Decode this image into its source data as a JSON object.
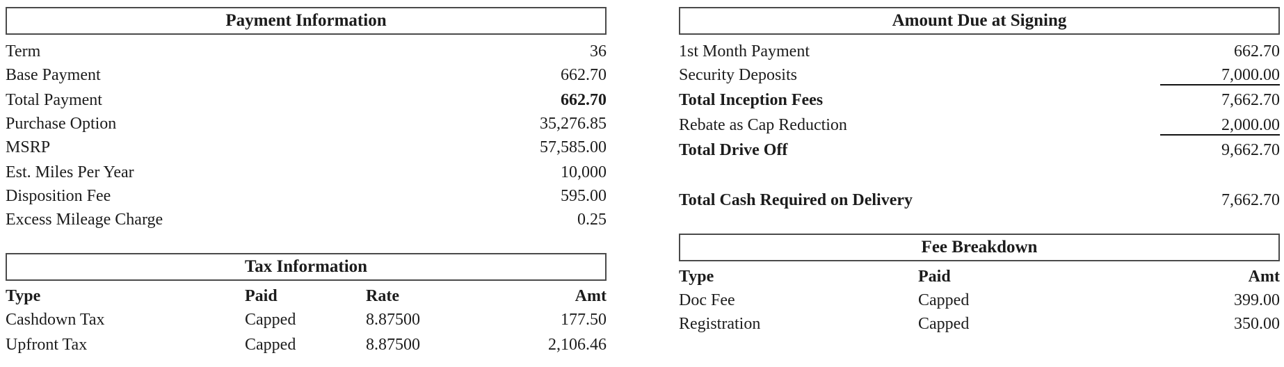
{
  "payment": {
    "title": "Payment Information",
    "rows": [
      {
        "label": "Term",
        "value": "36"
      },
      {
        "label": "Base Payment",
        "value": "662.70"
      },
      {
        "label": "Total Payment",
        "value": "662.70"
      },
      {
        "label": "Purchase Option",
        "value": "35,276.85"
      },
      {
        "label": "MSRP",
        "value": "57,585.00"
      },
      {
        "label": "Est. Miles Per Year",
        "value": "10,000"
      },
      {
        "label": "Disposition Fee",
        "value": "595.00"
      },
      {
        "label": "Excess Mileage Charge",
        "value": "0.25"
      }
    ]
  },
  "tax": {
    "title": "Tax Information",
    "headers": {
      "type": "Type",
      "paid": "Paid",
      "rate": "Rate",
      "amt": "Amt"
    },
    "rows": [
      {
        "type": "Cashdown Tax",
        "paid": "Capped",
        "rate": "8.87500",
        "amt": "177.50"
      },
      {
        "type": "Upfront Tax",
        "paid": "Capped",
        "rate": "8.87500",
        "amt": "2,106.46"
      }
    ]
  },
  "due": {
    "title": "Amount Due at Signing",
    "rows": [
      {
        "label": "1st Month Payment",
        "value": "662.70"
      },
      {
        "label": "Security Deposits",
        "value": "7,000.00"
      },
      {
        "label": "Total Inception Fees",
        "value": "7,662.70"
      },
      {
        "label": "Rebate as Cap Reduction",
        "value": "2,000.00"
      },
      {
        "label": "Total Drive Off",
        "value": "9,662.70"
      }
    ],
    "cash_label": "Total Cash Required on Delivery",
    "cash_value": "7,662.70"
  },
  "fees": {
    "title": "Fee Breakdown",
    "headers": {
      "type": "Type",
      "paid": "Paid",
      "amt": "Amt"
    },
    "rows": [
      {
        "type": "Doc Fee",
        "paid": "Capped",
        "amt": "399.00"
      },
      {
        "type": "Registration",
        "paid": "Capped",
        "amt": "350.00"
      }
    ]
  }
}
